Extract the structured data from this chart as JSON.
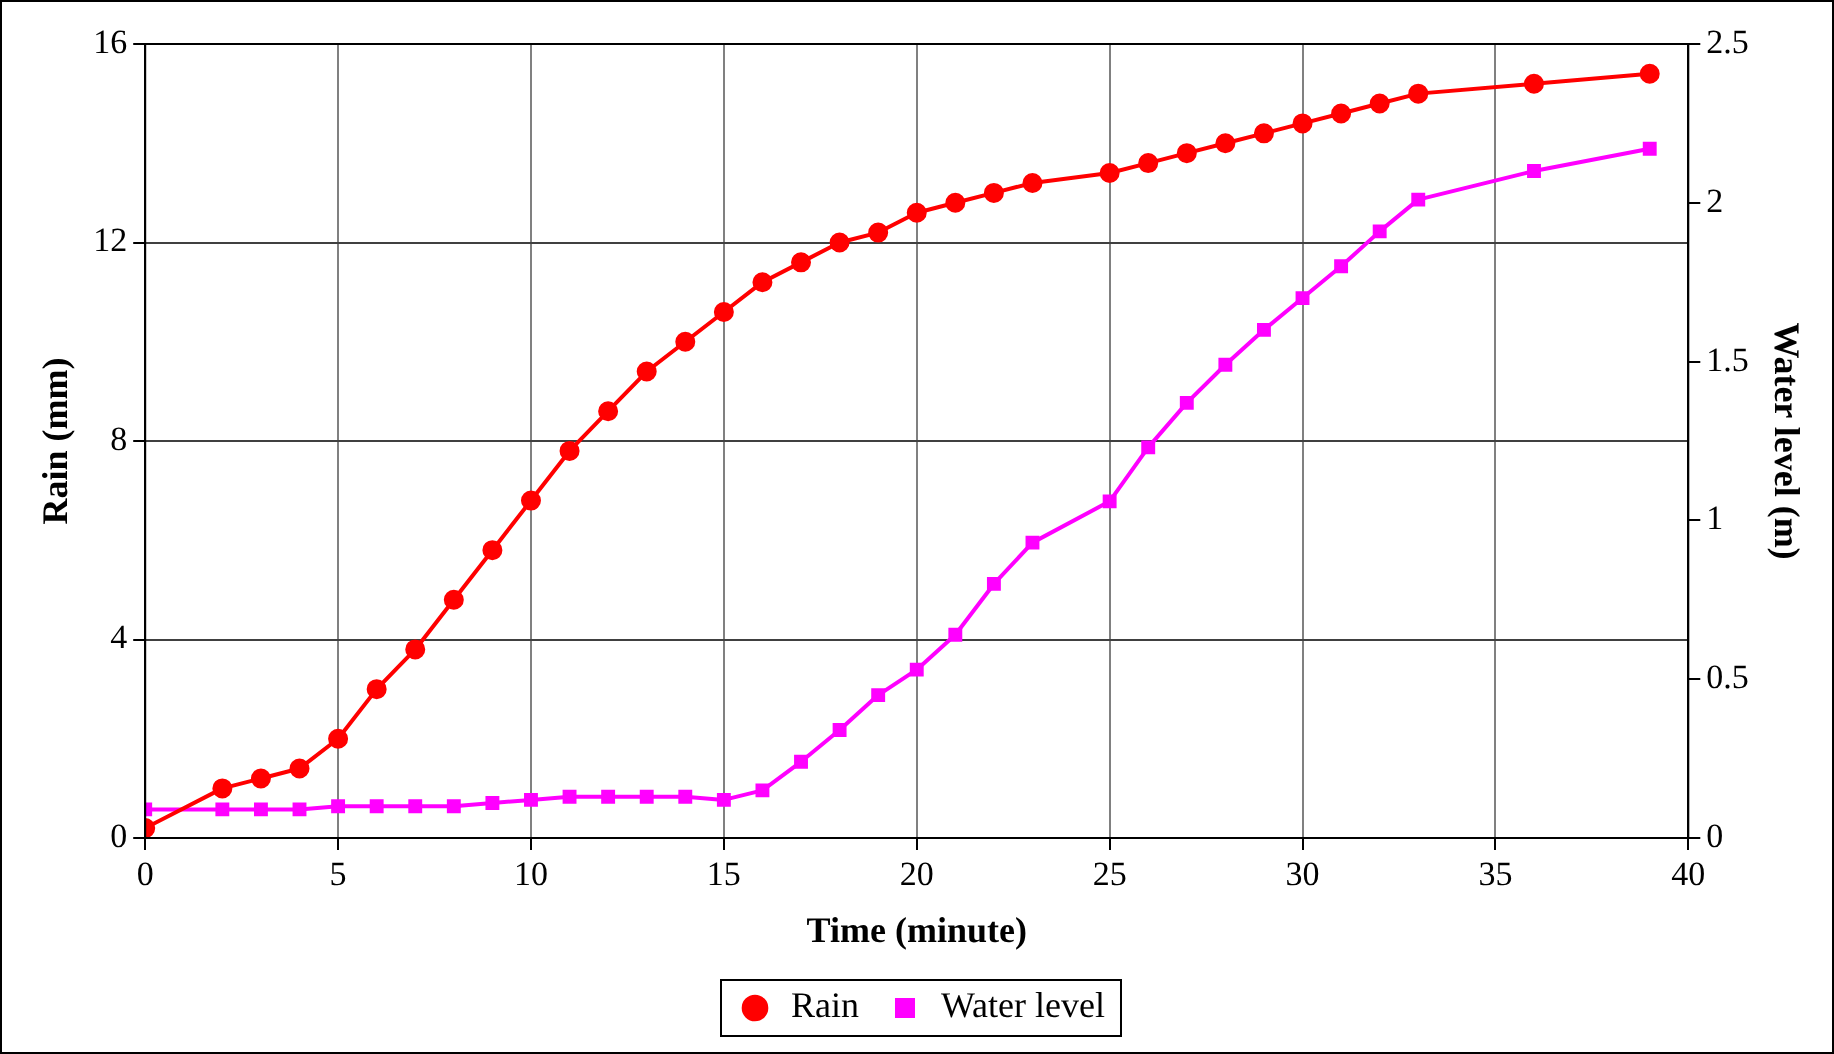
{
  "chart_data": {
    "type": "line",
    "xlabel": "Time (minute)",
    "ylabel": "Rain (mm)",
    "y2label": "Water level (m)",
    "xlim": [
      0,
      40
    ],
    "xticks": [
      0,
      5,
      10,
      15,
      20,
      25,
      30,
      35,
      40
    ],
    "ylim": [
      0,
      16
    ],
    "yticks": [
      0,
      4,
      8,
      12,
      16
    ],
    "y2lim": [
      0,
      2.5
    ],
    "y2ticks": [
      0,
      0.5,
      1,
      1.5,
      2,
      2.5
    ],
    "grid": true,
    "legend": "bottom",
    "line_style": "solid",
    "series": [
      {
        "name": "Rain",
        "color": "#ff0000",
        "marker": "circle",
        "x": [
          0,
          2,
          3,
          4,
          5,
          6,
          7,
          8,
          9,
          10,
          11,
          12,
          13,
          14,
          15,
          16,
          17,
          18,
          19,
          20,
          21,
          22,
          23,
          25,
          26,
          27,
          28,
          29,
          30,
          31,
          32,
          33,
          36,
          39
        ],
        "values": [
          0.2,
          1.0,
          1.2,
          1.4,
          2.0,
          3.0,
          3.8,
          4.8,
          5.8,
          6.8,
          7.8,
          8.6,
          9.4,
          10.0,
          10.6,
          11.2,
          11.6,
          12.0,
          12.2,
          12.6,
          12.8,
          13.0,
          13.2,
          13.4,
          13.6,
          13.8,
          14.0,
          14.2,
          14.4,
          14.6,
          14.8,
          15.0,
          15.2,
          15.4
        ]
      },
      {
        "name": "Water level",
        "color": "#ff00ff",
        "marker": "square",
        "axis": "y2",
        "x": [
          0,
          2,
          3,
          4,
          5,
          6,
          7,
          8,
          9,
          10,
          11,
          12,
          13,
          14,
          15,
          16,
          17,
          18,
          19,
          20,
          21,
          22,
          23,
          25,
          26,
          27,
          28,
          29,
          30,
          31,
          32,
          33,
          36,
          39
        ],
        "values": [
          0.09,
          0.09,
          0.09,
          0.09,
          0.1,
          0.1,
          0.1,
          0.1,
          0.11,
          0.12,
          0.13,
          0.13,
          0.13,
          0.13,
          0.12,
          0.15,
          0.24,
          0.34,
          0.45,
          0.53,
          0.64,
          0.8,
          0.93,
          1.06,
          1.23,
          1.37,
          1.49,
          1.6,
          1.7,
          1.8,
          1.91,
          2.01,
          2.1,
          2.17
        ]
      }
    ]
  }
}
